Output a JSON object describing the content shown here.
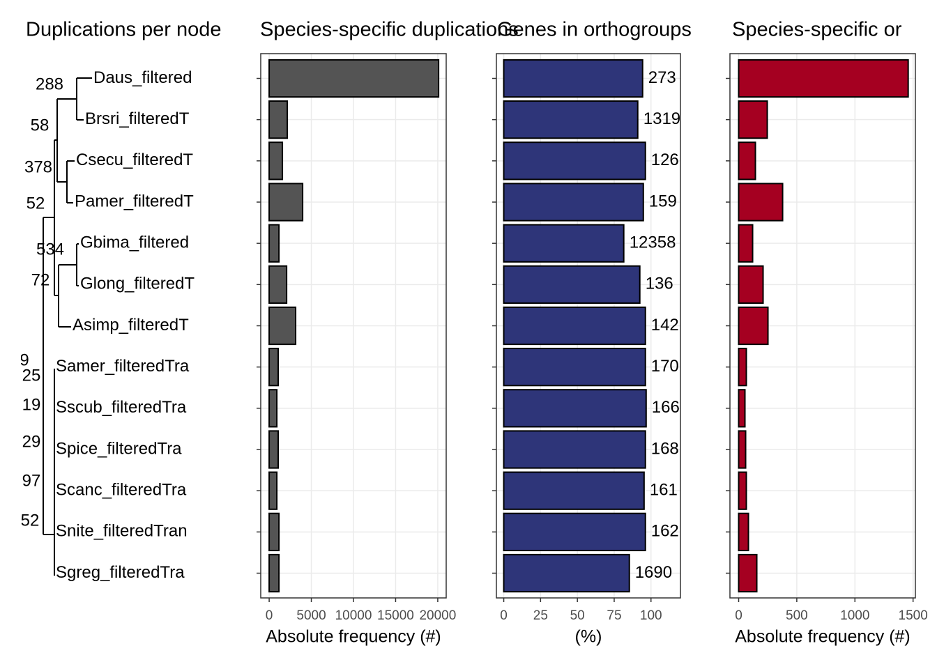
{
  "chart_data": [
    {
      "type": "tree",
      "title": "Duplications per node",
      "tips": [
        "Daus_filtered",
        "Brsri_filteredT",
        "Csecu_filteredT",
        "Pamer_filteredT",
        "Gbima_filtered",
        "Glong_filteredT",
        "Asimp_filteredT",
        "Samer_filteredTra",
        "Sscub_filteredTra",
        "Spice_filteredTra",
        "Scanc_filteredTra",
        "Snite_filteredTran",
        "Sgreg_filteredTra"
      ],
      "node_labels": [
        "288",
        "58",
        "378",
        "52",
        "534",
        "72",
        "9",
        "25",
        "19",
        "29",
        "97",
        "52"
      ]
    },
    {
      "type": "bar",
      "title": "Species-specific duplications",
      "x_label": "Absolute frequency (#)",
      "color": "#545454",
      "values": [
        20100,
        2150,
        1570,
        3970,
        1160,
        2070,
        3140,
        1070,
        910,
        1070,
        910,
        1160,
        1160
      ],
      "xlim": [
        -1000,
        21000
      ],
      "xticks": [
        0,
        5000,
        10000,
        15000,
        20000
      ],
      "grid": true
    },
    {
      "type": "bar",
      "title": "Genes in orthogroups",
      "x_label": "(%)",
      "color": "#2e3579",
      "values": [
        94.3,
        91,
        96.2,
        94.8,
        81.5,
        92.4,
        96.2,
        96.2,
        96.7,
        96.2,
        95.3,
        96.2,
        85.3
      ],
      "annotations": [
        "273",
        "1319",
        "126",
        "159",
        "12358",
        "136",
        "142",
        "170",
        "166",
        "168",
        "161",
        "162",
        "1690"
      ],
      "xlim": [
        -5,
        120
      ],
      "xticks": [
        0,
        25,
        50,
        75,
        100
      ],
      "grid": true
    },
    {
      "type": "bar",
      "title": "Species-specific or",
      "x_label": "Absolute frequency (#)",
      "color": "#a50021",
      "values": [
        1458,
        246,
        144,
        378,
        120,
        210,
        252,
        66,
        54,
        60,
        66,
        84,
        156
      ],
      "xlim": [
        -75,
        1520
      ],
      "xticks": [
        0,
        500,
        1000,
        1500
      ],
      "grid": true
    }
  ]
}
